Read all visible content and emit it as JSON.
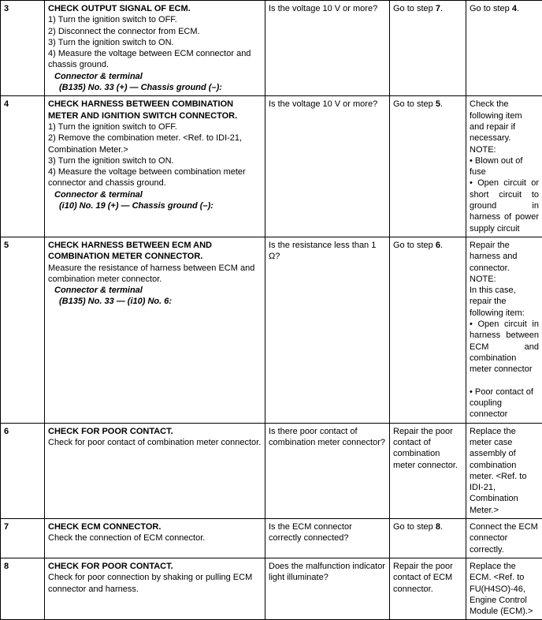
{
  "rows": [
    {
      "num": "3",
      "step_title": "CHECK OUTPUT SIGNAL OF ECM.",
      "step_body": "1)   Turn the ignition switch to OFF.\n2)   Disconnect the connector from ECM.\n3)   Turn the ignition switch to ON.\n4)   Measure the voltage between ECM connector and chassis ground.",
      "step_conn_label": "Connector & terminal",
      "step_conn_value": "(B135) No. 33 (+) — Chassis ground (–):",
      "check": "Is the voltage 10 V or more?",
      "yes_pre": "Go to step ",
      "yes_bold": "7",
      "yes_post": ".",
      "no_pre": "Go to step ",
      "no_bold": "4",
      "no_post": "."
    },
    {
      "num": "4",
      "step_title": "CHECK HARNESS BETWEEN COMBINATION METER AND IGNITION SWITCH CONNECTOR.",
      "step_body": "1)   Turn the ignition switch to OFF.\n2)   Remove the combination meter. <Ref. to IDI-21, Combination Meter.>\n3)   Turn the ignition switch to ON.\n4)   Measure the voltage between combination meter connector and chassis ground.",
      "step_conn_label": "Connector & terminal",
      "step_conn_value": "(i10) No. 19 (+) — Chassis ground (–):",
      "check": "Is the voltage 10 V or more?",
      "yes_pre": "Go to step ",
      "yes_bold": "5",
      "yes_post": ".",
      "no_html": "Check the following item and repair if necessary.\nNOTE:\n•  Blown out of fuse\n<span class='just' style='display:block'>• Open circuit or short circuit to ground in harness of power supply circuit</span>"
    },
    {
      "num": "5",
      "step_title": "CHECK HARNESS BETWEEN ECM AND COMBINATION METER CONNECTOR.",
      "step_body": "Measure the resistance of harness between ECM and combination meter connector.",
      "step_conn_label": "Connector & terminal",
      "step_conn_value": "(B135) No. 33 — (i10) No. 6:",
      "check": "Is the resistance less than 1 Ω?",
      "yes_pre": "Go to step ",
      "yes_bold": "6",
      "yes_post": ".",
      "no_html": "Repair the harness and connector.\nNOTE:\nIn this case, repair the following item:\n<span class='just' style='display:block'>• Open circuit in harness between ECM and combination meter connector</span>\n• Poor contact of coupling connector"
    },
    {
      "num": "6",
      "step_title": "CHECK FOR POOR CONTACT.",
      "step_body": "Check for poor contact of combination meter connector.",
      "check": "Is there poor contact of combination meter connector?",
      "yes_plain": "Repair the poor contact of combination meter connector.",
      "no_plain": "Replace the meter case assembly of combination meter. <Ref. to IDI-21, Combination Meter.>"
    },
    {
      "num": "7",
      "step_title": "CHECK ECM CONNECTOR.",
      "step_body": "Check the connection of ECM connector.",
      "check": "Is the ECM connector correctly connected?",
      "yes_pre": "Go to step ",
      "yes_bold": "8",
      "yes_post": ".",
      "no_plain": "Connect the ECM connector correctly."
    },
    {
      "num": "8",
      "step_title": "CHECK FOR POOR CONTACT.",
      "step_body": "Check for poor connection by shaking or pulling ECM connector and harness.",
      "check": "Does the malfunction indicator light illuminate?",
      "yes_plain": "Repair the poor contact of ECM connector.",
      "no_plain": "Replace the ECM. <Ref. to FU(H4SO)-46, Engine Control Module (ECM).>"
    }
  ]
}
